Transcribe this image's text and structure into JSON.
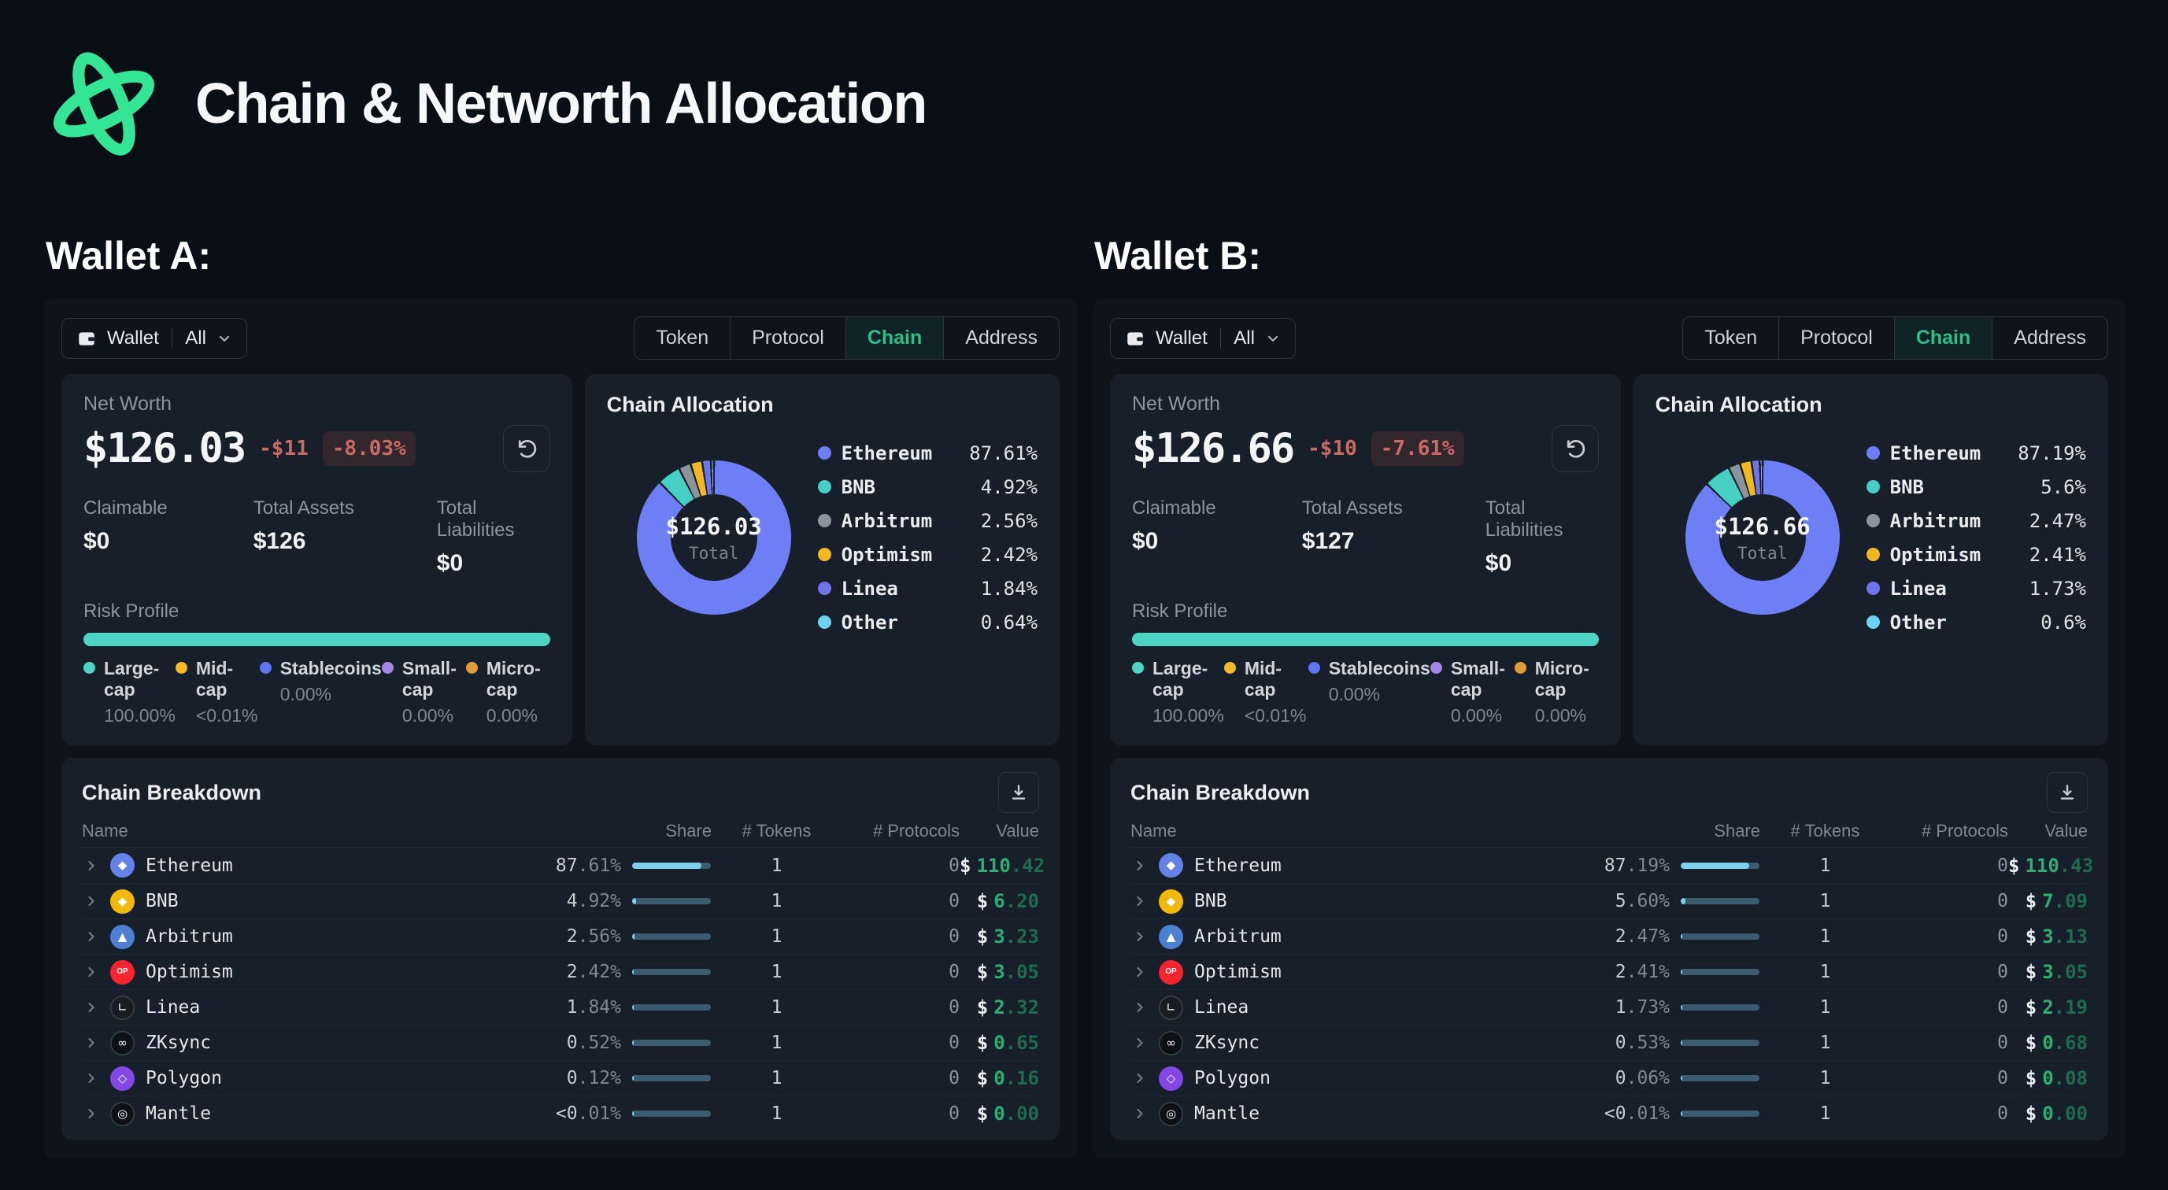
{
  "page": {
    "title": "Chain & Networth Allocation"
  },
  "common": {
    "dollar": "$"
  },
  "theme": {
    "accent_green": "#2ebd85",
    "logo_green": "#35e596",
    "negative_red": "#cb6a62",
    "bar_fill": "#7fd0ea",
    "bar_track": "#3d5b6e",
    "value_green": "#2fae74"
  },
  "chart_data": [
    {
      "type": "pie",
      "title": "Chain Allocation (Wallet A)",
      "labels": [
        "Ethereum",
        "BNB",
        "Arbitrum",
        "Optimism",
        "Linea",
        "Other"
      ],
      "values": [
        87.61,
        4.92,
        2.56,
        2.42,
        1.84,
        0.64
      ],
      "center_total": "$126.03",
      "legend_position": "right"
    },
    {
      "type": "pie",
      "title": "Chain Allocation (Wallet B)",
      "labels": [
        "Ethereum",
        "BNB",
        "Arbitrum",
        "Optimism",
        "Linea",
        "Other"
      ],
      "values": [
        87.19,
        5.6,
        2.47,
        2.41,
        1.73,
        0.6
      ],
      "center_total": "$126.66",
      "legend_position": "right"
    }
  ],
  "wallets": [
    {
      "heading": "Wallet A:",
      "filter": {
        "label": "Wallet",
        "scope": "All"
      },
      "tabs": [
        {
          "label": "Token",
          "active": false
        },
        {
          "label": "Protocol",
          "active": false
        },
        {
          "label": "Chain",
          "active": true
        },
        {
          "label": "Address",
          "active": false
        }
      ],
      "net_worth": {
        "label": "Net Worth",
        "value": "$126.03",
        "change_abs": "-$11",
        "change_pct": "-8.03%",
        "stats": [
          {
            "label": "Claimable",
            "value": "$0"
          },
          {
            "label": "Total Assets",
            "value": "$126"
          },
          {
            "label": "Total Liabilities",
            "value": "$0"
          }
        ],
        "risk": {
          "label": "Risk Profile",
          "bar_color": "#4fd4c4",
          "items": [
            {
              "label": "Large-cap",
              "value": "100.00%",
              "color": "#4fd4c4"
            },
            {
              "label": "Mid-cap",
              "value": "<0.01%",
              "color": "#f2b92c"
            },
            {
              "label": "Stablecoins",
              "value": "0.00%",
              "color": "#5f75f2"
            },
            {
              "label": "Small-cap",
              "value": "0.00%",
              "color": "#a687e8"
            },
            {
              "label": "Micro-cap",
              "value": "0.00%",
              "color": "#e09b3d"
            }
          ]
        }
      },
      "allocation": {
        "title": "Chain Allocation",
        "center_value": "$126.03",
        "center_label": "Total",
        "items": [
          {
            "name": "Ethereum",
            "pct": 87.61,
            "pct_label": "87.61%",
            "color": "#6e7ff5"
          },
          {
            "name": "BNB",
            "pct": 4.92,
            "pct_label": "4.92%",
            "color": "#46cfc2"
          },
          {
            "name": "Arbitrum",
            "pct": 2.56,
            "pct_label": "2.56%",
            "color": "#8b949e"
          },
          {
            "name": "Optimism",
            "pct": 2.42,
            "pct_label": "2.42%",
            "color": "#f2b822"
          },
          {
            "name": "Linea",
            "pct": 1.84,
            "pct_label": "1.84%",
            "color": "#6f74e8"
          },
          {
            "name": "Other",
            "pct": 0.64,
            "pct_label": "0.64%",
            "color": "#6ed3f2"
          }
        ]
      },
      "breakdown": {
        "title": "Chain Breakdown",
        "columns": {
          "name": "Name",
          "share": "Share",
          "tokens": "# Tokens",
          "protocols": "# Protocols",
          "value": "Value"
        },
        "rows": [
          {
            "name": "Ethereum",
            "icon": {
              "bg": "#6481e7",
              "glyph": "◆",
              "color": "#ffffff"
            },
            "share_main": "87",
            "share_frac": ".61%",
            "share_pct": 87.61,
            "tokens": "1",
            "protocols": "0",
            "value_main": "110",
            "value_frac": ".42"
          },
          {
            "name": "BNB",
            "icon": {
              "bg": "#f0b90b",
              "glyph": "◆",
              "color": "#ffffff"
            },
            "share_main": "4",
            "share_frac": ".92%",
            "share_pct": 4.92,
            "tokens": "1",
            "protocols": "0",
            "value_main": "6",
            "value_frac": ".20"
          },
          {
            "name": "Arbitrum",
            "icon": {
              "bg": "#4e7fd0",
              "glyph": "▲",
              "color": "#ffffff"
            },
            "share_main": "2",
            "share_frac": ".56%",
            "share_pct": 2.56,
            "tokens": "1",
            "protocols": "0",
            "value_main": "3",
            "value_frac": ".23"
          },
          {
            "name": "Optimism",
            "icon": {
              "bg": "#f5242e",
              "glyph": "OP",
              "color": "#ffffff"
            },
            "share_main": "2",
            "share_frac": ".42%",
            "share_pct": 2.42,
            "tokens": "1",
            "protocols": "0",
            "value_main": "3",
            "value_frac": ".05"
          },
          {
            "name": "Linea",
            "icon": {
              "bg": "#191d22",
              "glyph": "∟",
              "color": "#ffffff",
              "border": "#39424c"
            },
            "share_main": "1",
            "share_frac": ".84%",
            "share_pct": 1.84,
            "tokens": "1",
            "protocols": "0",
            "value_main": "2",
            "value_frac": ".32"
          },
          {
            "name": "ZKsync",
            "icon": {
              "bg": "#0d1117",
              "glyph": "∞",
              "color": "#ffffff",
              "border": "#39424c"
            },
            "share_main": "0",
            "share_frac": ".52%",
            "share_pct": 0.52,
            "tokens": "1",
            "protocols": "0",
            "value_main": "0",
            "value_frac": ".65"
          },
          {
            "name": "Polygon",
            "icon": {
              "bg": "#8247e5",
              "glyph": "◇",
              "color": "#ffffff"
            },
            "share_main": "0",
            "share_frac": ".12%",
            "share_pct": 0.12,
            "tokens": "1",
            "protocols": "0",
            "value_main": "0",
            "value_frac": ".16"
          },
          {
            "name": "Mantle",
            "icon": {
              "bg": "#0d1117",
              "glyph": "◎",
              "color": "#ffffff",
              "border": "#39424c"
            },
            "share_main": "<0",
            "share_frac": ".01%",
            "share_pct": 0.01,
            "tokens": "1",
            "protocols": "0",
            "value_main": "0",
            "value_frac": ".00"
          }
        ]
      }
    },
    {
      "heading": "Wallet B:",
      "filter": {
        "label": "Wallet",
        "scope": "All"
      },
      "tabs": [
        {
          "label": "Token",
          "active": false
        },
        {
          "label": "Protocol",
          "active": false
        },
        {
          "label": "Chain",
          "active": true
        },
        {
          "label": "Address",
          "active": false
        }
      ],
      "net_worth": {
        "label": "Net Worth",
        "value": "$126.66",
        "change_abs": "-$10",
        "change_pct": "-7.61%",
        "stats": [
          {
            "label": "Claimable",
            "value": "$0"
          },
          {
            "label": "Total Assets",
            "value": "$127"
          },
          {
            "label": "Total Liabilities",
            "value": "$0"
          }
        ],
        "risk": {
          "label": "Risk Profile",
          "bar_color": "#4fd4c4",
          "items": [
            {
              "label": "Large-cap",
              "value": "100.00%",
              "color": "#4fd4c4"
            },
            {
              "label": "Mid-cap",
              "value": "<0.01%",
              "color": "#f2b92c"
            },
            {
              "label": "Stablecoins",
              "value": "0.00%",
              "color": "#5f75f2"
            },
            {
              "label": "Small-cap",
              "value": "0.00%",
              "color": "#a687e8"
            },
            {
              "label": "Micro-cap",
              "value": "0.00%",
              "color": "#e09b3d"
            }
          ]
        }
      },
      "allocation": {
        "title": "Chain Allocation",
        "center_value": "$126.66",
        "center_label": "Total",
        "items": [
          {
            "name": "Ethereum",
            "pct": 87.19,
            "pct_label": "87.19%",
            "color": "#6e7ff5"
          },
          {
            "name": "BNB",
            "pct": 5.6,
            "pct_label": "5.6%",
            "color": "#46cfc2"
          },
          {
            "name": "Arbitrum",
            "pct": 2.47,
            "pct_label": "2.47%",
            "color": "#8b949e"
          },
          {
            "name": "Optimism",
            "pct": 2.41,
            "pct_label": "2.41%",
            "color": "#f2b822"
          },
          {
            "name": "Linea",
            "pct": 1.73,
            "pct_label": "1.73%",
            "color": "#6f74e8"
          },
          {
            "name": "Other",
            "pct": 0.6,
            "pct_label": "0.6%",
            "color": "#6ed3f2"
          }
        ]
      },
      "breakdown": {
        "title": "Chain Breakdown",
        "columns": {
          "name": "Name",
          "share": "Share",
          "tokens": "# Tokens",
          "protocols": "# Protocols",
          "value": "Value"
        },
        "rows": [
          {
            "name": "Ethereum",
            "icon": {
              "bg": "#6481e7",
              "glyph": "◆",
              "color": "#ffffff"
            },
            "share_main": "87",
            "share_frac": ".19%",
            "share_pct": 87.19,
            "tokens": "1",
            "protocols": "0",
            "value_main": "110",
            "value_frac": ".43"
          },
          {
            "name": "BNB",
            "icon": {
              "bg": "#f0b90b",
              "glyph": "◆",
              "color": "#ffffff"
            },
            "share_main": "5",
            "share_frac": ".60%",
            "share_pct": 5.6,
            "tokens": "1",
            "protocols": "0",
            "value_main": "7",
            "value_frac": ".09"
          },
          {
            "name": "Arbitrum",
            "icon": {
              "bg": "#4e7fd0",
              "glyph": "▲",
              "color": "#ffffff"
            },
            "share_main": "2",
            "share_frac": ".47%",
            "share_pct": 2.47,
            "tokens": "1",
            "protocols": "0",
            "value_main": "3",
            "value_frac": ".13"
          },
          {
            "name": "Optimism",
            "icon": {
              "bg": "#f5242e",
              "glyph": "OP",
              "color": "#ffffff"
            },
            "share_main": "2",
            "share_frac": ".41%",
            "share_pct": 2.41,
            "tokens": "1",
            "protocols": "0",
            "value_main": "3",
            "value_frac": ".05"
          },
          {
            "name": "Linea",
            "icon": {
              "bg": "#191d22",
              "glyph": "∟",
              "color": "#ffffff",
              "border": "#39424c"
            },
            "share_main": "1",
            "share_frac": ".73%",
            "share_pct": 1.73,
            "tokens": "1",
            "protocols": "0",
            "value_main": "2",
            "value_frac": ".19"
          },
          {
            "name": "ZKsync",
            "icon": {
              "bg": "#0d1117",
              "glyph": "∞",
              "color": "#ffffff",
              "border": "#39424c"
            },
            "share_main": "0",
            "share_frac": ".53%",
            "share_pct": 0.53,
            "tokens": "1",
            "protocols": "0",
            "value_main": "0",
            "value_frac": ".68"
          },
          {
            "name": "Polygon",
            "icon": {
              "bg": "#8247e5",
              "glyph": "◇",
              "color": "#ffffff"
            },
            "share_main": "0",
            "share_frac": ".06%",
            "share_pct": 0.06,
            "tokens": "1",
            "protocols": "0",
            "value_main": "0",
            "value_frac": ".08"
          },
          {
            "name": "Mantle",
            "icon": {
              "bg": "#0d1117",
              "glyph": "◎",
              "color": "#ffffff",
              "border": "#39424c"
            },
            "share_main": "<0",
            "share_frac": ".01%",
            "share_pct": 0.01,
            "tokens": "1",
            "protocols": "0",
            "value_main": "0",
            "value_frac": ".00"
          }
        ]
      }
    }
  ]
}
